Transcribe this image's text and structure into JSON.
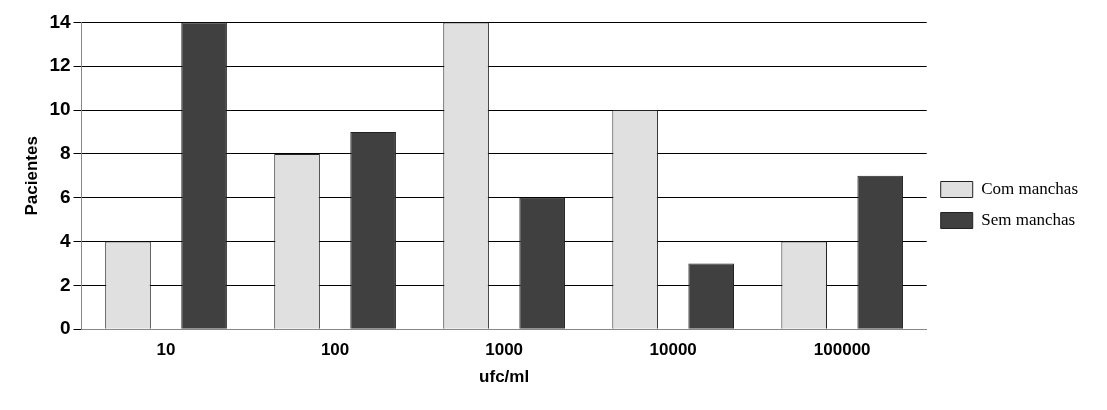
{
  "chart_data": {
    "type": "bar",
    "xlabel": "ufc/ml",
    "ylabel": "Pacientes",
    "categories": [
      "10",
      "100",
      "1000",
      "10000",
      "100000"
    ],
    "series": [
      {
        "name": "Com manchas",
        "color": "#e0e0e0",
        "values": [
          4,
          8,
          14,
          10,
          4
        ]
      },
      {
        "name": "Sem manchas",
        "color": "#404040",
        "values": [
          14,
          9,
          6,
          3,
          7
        ]
      }
    ],
    "ylim": [
      0,
      14
    ],
    "yticks": [
      0,
      2,
      4,
      6,
      8,
      10,
      12,
      14
    ],
    "grid": "y",
    "legend": "right"
  }
}
